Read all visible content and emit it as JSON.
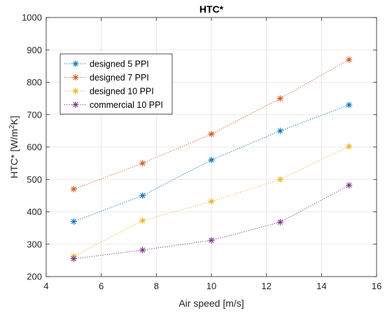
{
  "chart_data": {
    "type": "line",
    "title": "HTC*",
    "xlabel": "Air speed [m/s]",
    "ylabel_main": "HTC* [W/m",
    "ylabel_sup": "2",
    "ylabel_tail": "K]",
    "xlim": [
      4,
      16
    ],
    "ylim": [
      200,
      1000
    ],
    "xticks": [
      4,
      6,
      8,
      10,
      12,
      14,
      16
    ],
    "yticks": [
      200,
      300,
      400,
      500,
      600,
      700,
      800,
      900,
      1000
    ],
    "grid": true,
    "legend_position": "upper-left",
    "x": [
      5,
      7.5,
      10,
      12.5,
      15
    ],
    "series": [
      {
        "name": "designed 5 PPI",
        "color": "#0072BD",
        "values": [
          370,
          450,
          560,
          650,
          730
        ]
      },
      {
        "name": "designed 7 PPI",
        "color": "#D95319",
        "values": [
          470,
          550,
          640,
          750,
          870
        ]
      },
      {
        "name": "designed 10 PPI",
        "color": "#EDB120",
        "values": [
          263,
          373,
          432,
          500,
          602
        ]
      },
      {
        "name": "commercial 10 PPI",
        "color": "#7E2F8E",
        "values": [
          255,
          282,
          312,
          368,
          482
        ]
      }
    ],
    "marker": "asterisk",
    "line_style": "dotted"
  }
}
